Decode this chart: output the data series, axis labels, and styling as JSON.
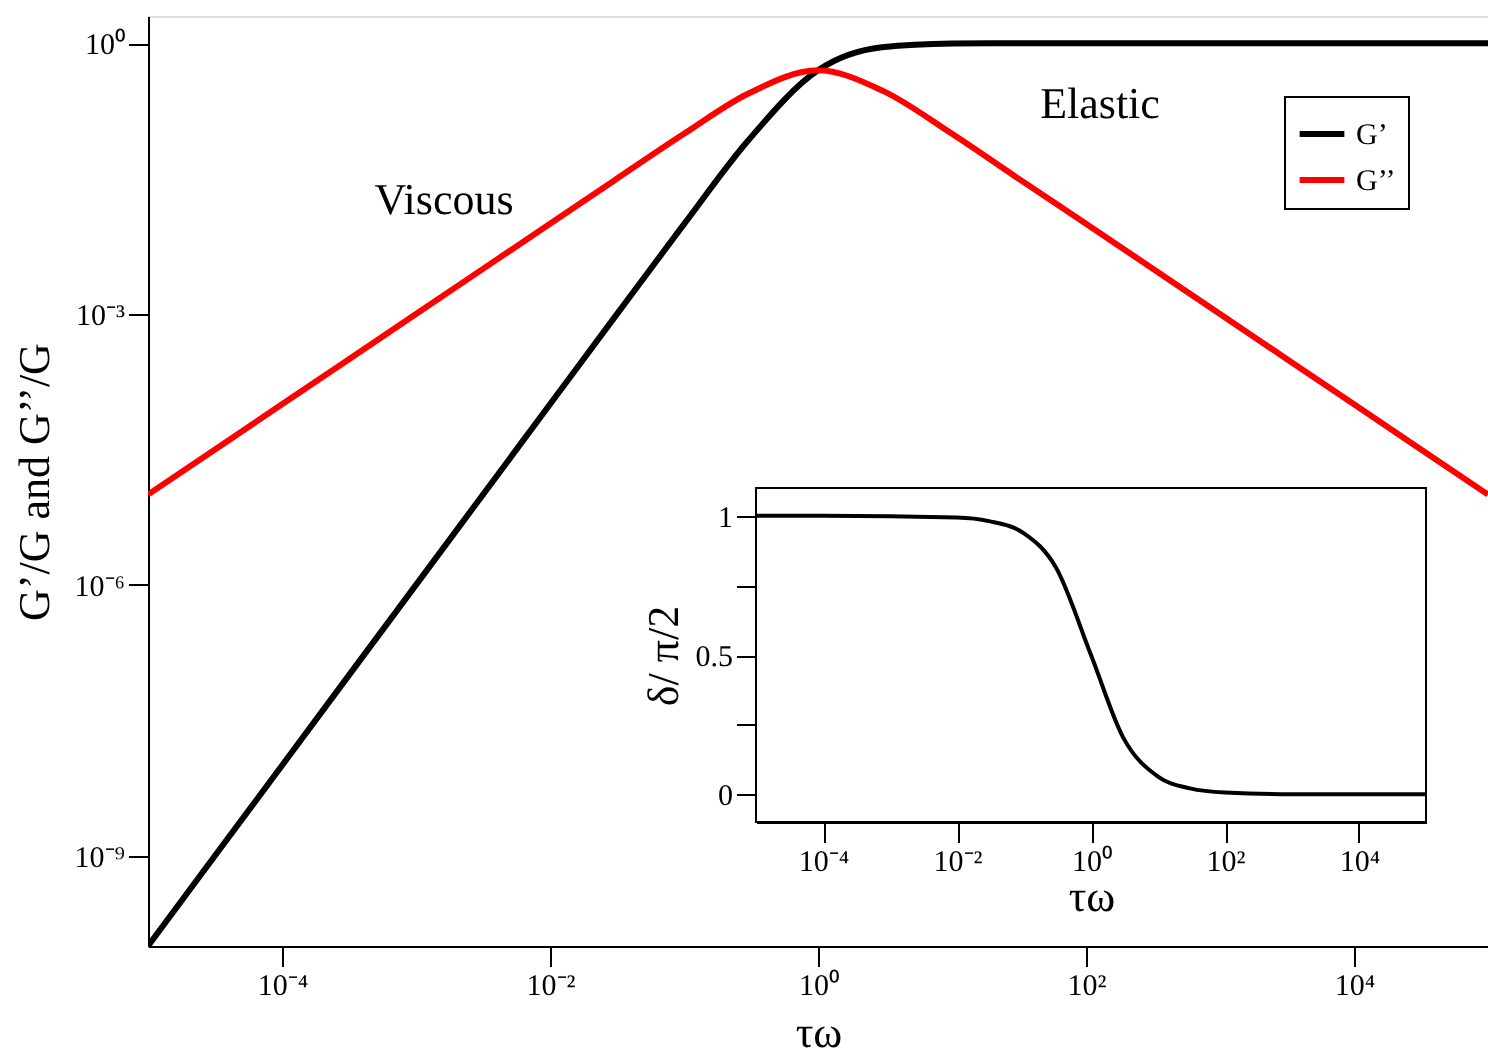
{
  "chart_data": [
    {
      "type": "line",
      "xlabel": "τω",
      "ylabel": "G’/G and G’’/G",
      "log": "xy",
      "xlim": [
        1e-05,
        100000
      ],
      "ylim": [
        1e-10,
        2
      ],
      "xticks": [
        {
          "value": 0.0001,
          "label": "10⁻⁴"
        },
        {
          "value": 0.01,
          "label": "10⁻²"
        },
        {
          "value": 1,
          "label": "10⁰"
        },
        {
          "value": 100,
          "label": "10²"
        },
        {
          "value": 10000,
          "label": "10⁴"
        }
      ],
      "yticks": [
        {
          "value": 1,
          "label": "10⁰"
        },
        {
          "value": 0.001,
          "label": "10⁻³"
        },
        {
          "value": 1e-06,
          "label": "10⁻⁶"
        },
        {
          "value": 1e-09,
          "label": "10⁻⁹"
        }
      ],
      "grid": false,
      "legend": "top right",
      "marker": "none",
      "line_style": "solid",
      "annotations": [
        "Viscous",
        "Elastic"
      ],
      "series": [
        {
          "name": "G’",
          "color": "#000000",
          "x": [
            1e-05,
            0.0001,
            0.001,
            0.01,
            0.03,
            0.1,
            0.3,
            1,
            3,
            10,
            30,
            100,
            1000,
            10000,
            100000
          ],
          "values": [
            1e-10,
            1e-08,
            1e-06,
            0.0001,
            0.0009,
            0.0099,
            0.083,
            0.5,
            0.9,
            0.99,
            0.9989,
            1,
            1,
            1,
            1
          ]
        },
        {
          "name": "G’’",
          "color": "#ff0000",
          "x": [
            1e-05,
            0.0001,
            0.001,
            0.01,
            0.03,
            0.1,
            0.3,
            1,
            3,
            10,
            30,
            100,
            1000,
            10000,
            100000
          ],
          "values": [
            1e-05,
            0.0001,
            0.001,
            0.01,
            0.03,
            0.099,
            0.275,
            0.5,
            0.3,
            0.099,
            0.033,
            0.01,
            0.001,
            0.0001,
            1e-05
          ]
        }
      ]
    },
    {
      "type": "line",
      "xlabel": "τω",
      "ylabel": "δ/ π/2",
      "log": "x",
      "xlim": [
        1e-05,
        100000
      ],
      "ylim": [
        -0.1,
        1.1
      ],
      "xticks": [
        {
          "value": 0.0001,
          "label": "10⁻⁴"
        },
        {
          "value": 0.01,
          "label": "10⁻²"
        },
        {
          "value": 1,
          "label": "10⁰"
        },
        {
          "value": 100,
          "label": "10²"
        },
        {
          "value": 10000,
          "label": "10⁴"
        }
      ],
      "yticks": [
        0,
        {
          "value": 0.25,
          "label": null
        },
        0.5,
        {
          "value": 0.75,
          "label": null
        },
        1
      ],
      "grid": false,
      "marker": "none",
      "line_style": "solid",
      "series": [
        {
          "color": "#000000",
          "x": [
            1e-05,
            0.0001,
            0.01,
            0.03,
            0.1,
            0.3,
            1,
            3,
            10,
            30,
            100,
            1000,
            10000,
            100000
          ],
          "values": [
            1,
            1,
            0.994,
            0.981,
            0.937,
            0.814,
            0.5,
            0.205,
            0.063,
            0.021,
            0.006,
            0,
            0,
            0
          ]
        }
      ]
    }
  ]
}
